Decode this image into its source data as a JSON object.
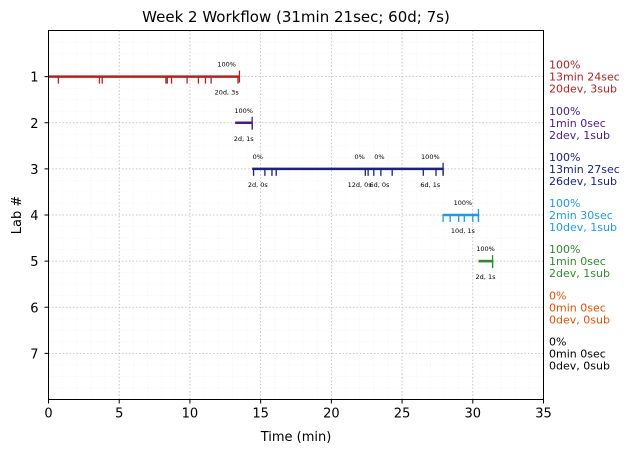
{
  "chart_data": {
    "type": "timeline",
    "title": "Week 2 Workflow (31min 21sec; 60d; 7s)",
    "xlabel": "Time (min)",
    "ylabel": "Lab #",
    "xlim": [
      0,
      35
    ],
    "ylim": [
      8,
      0
    ],
    "xticks": [
      0,
      5,
      10,
      15,
      20,
      25,
      30,
      35
    ],
    "yticks": [
      1,
      2,
      3,
      4,
      5,
      6,
      7
    ],
    "grid": true,
    "labs": [
      {
        "lab": 1,
        "color": "#b22222",
        "start": 0,
        "end": 13.5,
        "ticks": [
          0.7,
          3.6,
          3.8,
          8.3,
          8.4,
          8.7,
          9.8,
          10.6,
          11.1,
          11.5,
          13.4
        ],
        "annotations": [
          {
            "x": 12.6,
            "above": "100%",
            "below": "20d, 3s"
          }
        ],
        "stats": [
          "100%",
          "13min 24sec",
          "20dev, 3sub"
        ]
      },
      {
        "lab": 2,
        "color": "#4b1a8c",
        "start": 13.2,
        "end": 14.4,
        "ticks": [
          14.4
        ],
        "annotations": [
          {
            "x": 13.8,
            "above": "100%",
            "below": "2d, 1s"
          }
        ],
        "stats": [
          "100%",
          "1min 0sec",
          "2dev, 1sub"
        ]
      },
      {
        "lab": 3,
        "color": "#1a237e",
        "start": 14.4,
        "end": 27.9,
        "ticks": [
          14.5,
          15.3,
          15.8,
          16.1,
          22.4,
          22.6,
          23.0,
          23.5,
          24.3,
          26.5,
          27.4,
          27.9
        ],
        "annotations": [
          {
            "x": 14.8,
            "above": "0%",
            "below": "2d, 0s"
          },
          {
            "x": 22.0,
            "above": "0%",
            "below": "12d, 0s"
          },
          {
            "x": 23.4,
            "above": "0%",
            "below": "6d, 0s"
          },
          {
            "x": 27.0,
            "above": "100%",
            "below": "6d, 1s"
          }
        ],
        "stats": [
          "100%",
          "13min 27sec",
          "26dev, 1sub"
        ]
      },
      {
        "lab": 4,
        "color": "#1e9be6",
        "start": 27.9,
        "end": 30.4,
        "ticks": [
          27.9,
          28.4,
          29.0,
          29.4,
          30.0,
          30.4
        ],
        "annotations": [
          {
            "x": 29.3,
            "above": "100%",
            "below": "10d, 1s"
          }
        ],
        "stats": [
          "100%",
          "2min 30sec",
          "10dev, 1sub"
        ]
      },
      {
        "lab": 5,
        "color": "#2e8b2e",
        "start": 30.4,
        "end": 31.4,
        "ticks": [
          31.4
        ],
        "annotations": [
          {
            "x": 30.9,
            "above": "100%",
            "below": "2d, 1s"
          }
        ],
        "stats": [
          "100%",
          "1min 0sec",
          "2dev, 1sub"
        ]
      },
      {
        "lab": 6,
        "color": "#e65100",
        "start": null,
        "end": null,
        "ticks": [],
        "annotations": [],
        "stats": [
          "0%",
          "0min 0sec",
          "0dev, 0sub"
        ]
      },
      {
        "lab": 7,
        "color": "#000000",
        "start": null,
        "end": null,
        "ticks": [],
        "annotations": [],
        "stats": [
          "0%",
          "0min 0sec",
          "0dev, 0sub"
        ]
      }
    ]
  }
}
